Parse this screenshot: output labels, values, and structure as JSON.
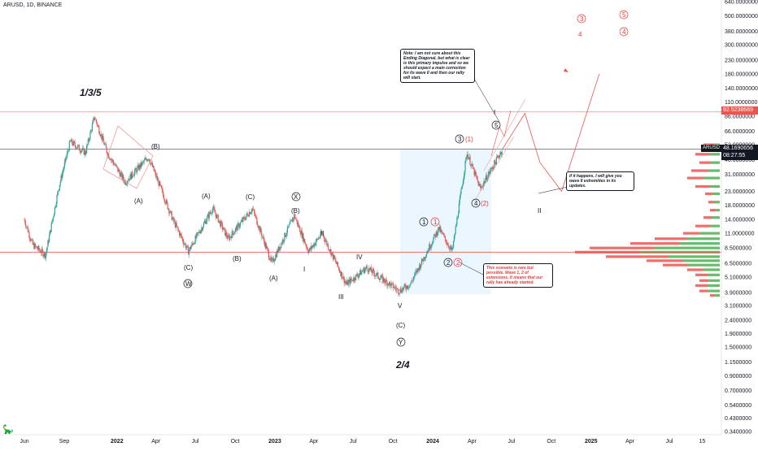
{
  "header": {
    "title": "ARUSD, 1D, BINANCE"
  },
  "price_axis": {
    "ticks": [
      "640.0000000",
      "500.0000000",
      "380.0000000",
      "300.0000000",
      "230.0000000",
      "180.0000000",
      "140.0000000",
      "110.0000000",
      "86.0000000",
      "66.0000000",
      "52.0000000",
      "40.0000000",
      "31.0000000",
      "23.0000000",
      "18.0000000",
      "14.0000000",
      "11.0000000",
      "8.5000000",
      "6.5000000",
      "5.1000000",
      "3.9000000",
      "3.1000000",
      "2.4000000",
      "1.9000000",
      "1.5000000",
      "1.1500000",
      "0.9000000",
      "0.7000000",
      "0.5400000",
      "0.4300000",
      "0.3400000"
    ],
    "red_level_label": "92.5238669",
    "symbol_tag": "ARUSD",
    "last_price": "48.1690656",
    "countdown": "08:27:55"
  },
  "time_axis": {
    "ticks": [
      {
        "label": "Jun",
        "bold": false
      },
      {
        "label": "Sep",
        "bold": false
      },
      {
        "label": "2022",
        "bold": true
      },
      {
        "label": "Apr",
        "bold": false
      },
      {
        "label": "Jul",
        "bold": false
      },
      {
        "label": "Oct",
        "bold": false
      },
      {
        "label": "2023",
        "bold": true
      },
      {
        "label": "Apr",
        "bold": false
      },
      {
        "label": "Jul",
        "bold": false
      },
      {
        "label": "Oct",
        "bold": false
      },
      {
        "label": "2024",
        "bold": true
      },
      {
        "label": "Apr",
        "bold": false
      },
      {
        "label": "Jul",
        "bold": false
      },
      {
        "label": "Oct",
        "bold": false
      },
      {
        "label": "2025",
        "bold": true
      },
      {
        "label": "Apr",
        "bold": false
      },
      {
        "label": "Jul",
        "bold": false
      },
      {
        "label": "15",
        "bold": false
      }
    ]
  },
  "labels": {
    "big_135": "1/3/5",
    "big_24": "2/4",
    "B1": "(B)",
    "A1": "(A)",
    "C1": "(C)",
    "W": "W",
    "A2": "(A)",
    "C2": "(C)",
    "B2": "(B)",
    "X": "X",
    "B3": "(B)",
    "A3": "(A)",
    "I1": "I",
    "II1": "II",
    "III": "III",
    "IV": "IV",
    "V": "V",
    "C3": "(C)",
    "Y": "Y",
    "w1": "1",
    "w1r": "1",
    "w2": "2",
    "w2r": "2",
    "w3": "3",
    "w3r": "(1)",
    "w4": "4",
    "w4r": "(2)",
    "w5": "5",
    "I2": "I",
    "II2": "II",
    "r3": "3",
    "r5": "5",
    "r4": "4",
    "r4c": "4"
  },
  "notes": {
    "note1": "Note: I am not sure about this Ending Diagonal, but what is clear is this primary impulse and so we should expect a main correction for its wave II and then our rally will start.",
    "note2": "if it happens, I will give you wave II extremities in its updates.",
    "note3": "This scenario is rare but possible. Wave 1, 2 of extensions. It means that our rally has already started."
  },
  "chart_data": {
    "type": "candlestick",
    "title": "ARUSD, 1D, BINANCE",
    "y_scale": "log",
    "ylim": [
      0.34,
      640
    ],
    "x_range": [
      "2021-06",
      "2025-09"
    ],
    "horizontal_levels": [
      {
        "value": 92.5238669,
        "color": "#ef9a9a"
      },
      {
        "value": 48.1690656,
        "color": "#131722"
      },
      {
        "value": 7.9,
        "color": "#ef5350"
      }
    ],
    "close_path": [
      {
        "date": "2021-06-01",
        "close": 14.0
      },
      {
        "date": "2021-06-20",
        "close": 9.0
      },
      {
        "date": "2021-07-20",
        "close": 7.5
      },
      {
        "date": "2021-08-20",
        "close": 25.0
      },
      {
        "date": "2021-09-15",
        "close": 55.0
      },
      {
        "date": "2021-10-20",
        "close": 45.0
      },
      {
        "date": "2021-11-10",
        "close": 85.0
      },
      {
        "date": "2021-12-10",
        "close": 45.0
      },
      {
        "date": "2022-01-20",
        "close": 27.0
      },
      {
        "date": "2022-03-15",
        "close": 42.0
      },
      {
        "date": "2022-05-10",
        "close": 14.0
      },
      {
        "date": "2022-06-15",
        "close": 8.0
      },
      {
        "date": "2022-08-10",
        "close": 17.0
      },
      {
        "date": "2022-09-15",
        "close": 10.0
      },
      {
        "date": "2022-11-10",
        "close": 17.0
      },
      {
        "date": "2022-12-25",
        "close": 6.5
      },
      {
        "date": "2023-02-15",
        "close": 15.0
      },
      {
        "date": "2023-03-20",
        "close": 8.0
      },
      {
        "date": "2023-04-20",
        "close": 11.0
      },
      {
        "date": "2023-06-15",
        "close": 4.5
      },
      {
        "date": "2023-08-01",
        "close": 6.0
      },
      {
        "date": "2023-10-15",
        "close": 4.0
      },
      {
        "date": "2023-11-10",
        "close": 4.5
      },
      {
        "date": "2024-01-15",
        "close": 12.0
      },
      {
        "date": "2024-02-15",
        "close": 8.0
      },
      {
        "date": "2024-03-20",
        "close": 45.0
      },
      {
        "date": "2024-04-20",
        "close": 24.0
      },
      {
        "date": "2024-06-10",
        "close": 48.0
      }
    ],
    "projection": [
      {
        "date": "2024-06-10",
        "value": 48.0
      },
      {
        "date": "2024-08-01",
        "value": 90.0
      },
      {
        "date": "2024-09-05",
        "value": 38.0
      },
      {
        "date": "2024-10-25",
        "value": 23.0
      },
      {
        "date": "2025-01-20",
        "value": 180.0
      }
    ],
    "highlight_zone": {
      "from": "2023-11-01",
      "to": "2024-06-01",
      "low": 3.6,
      "high": 48.0
    },
    "volume_profile": true
  }
}
